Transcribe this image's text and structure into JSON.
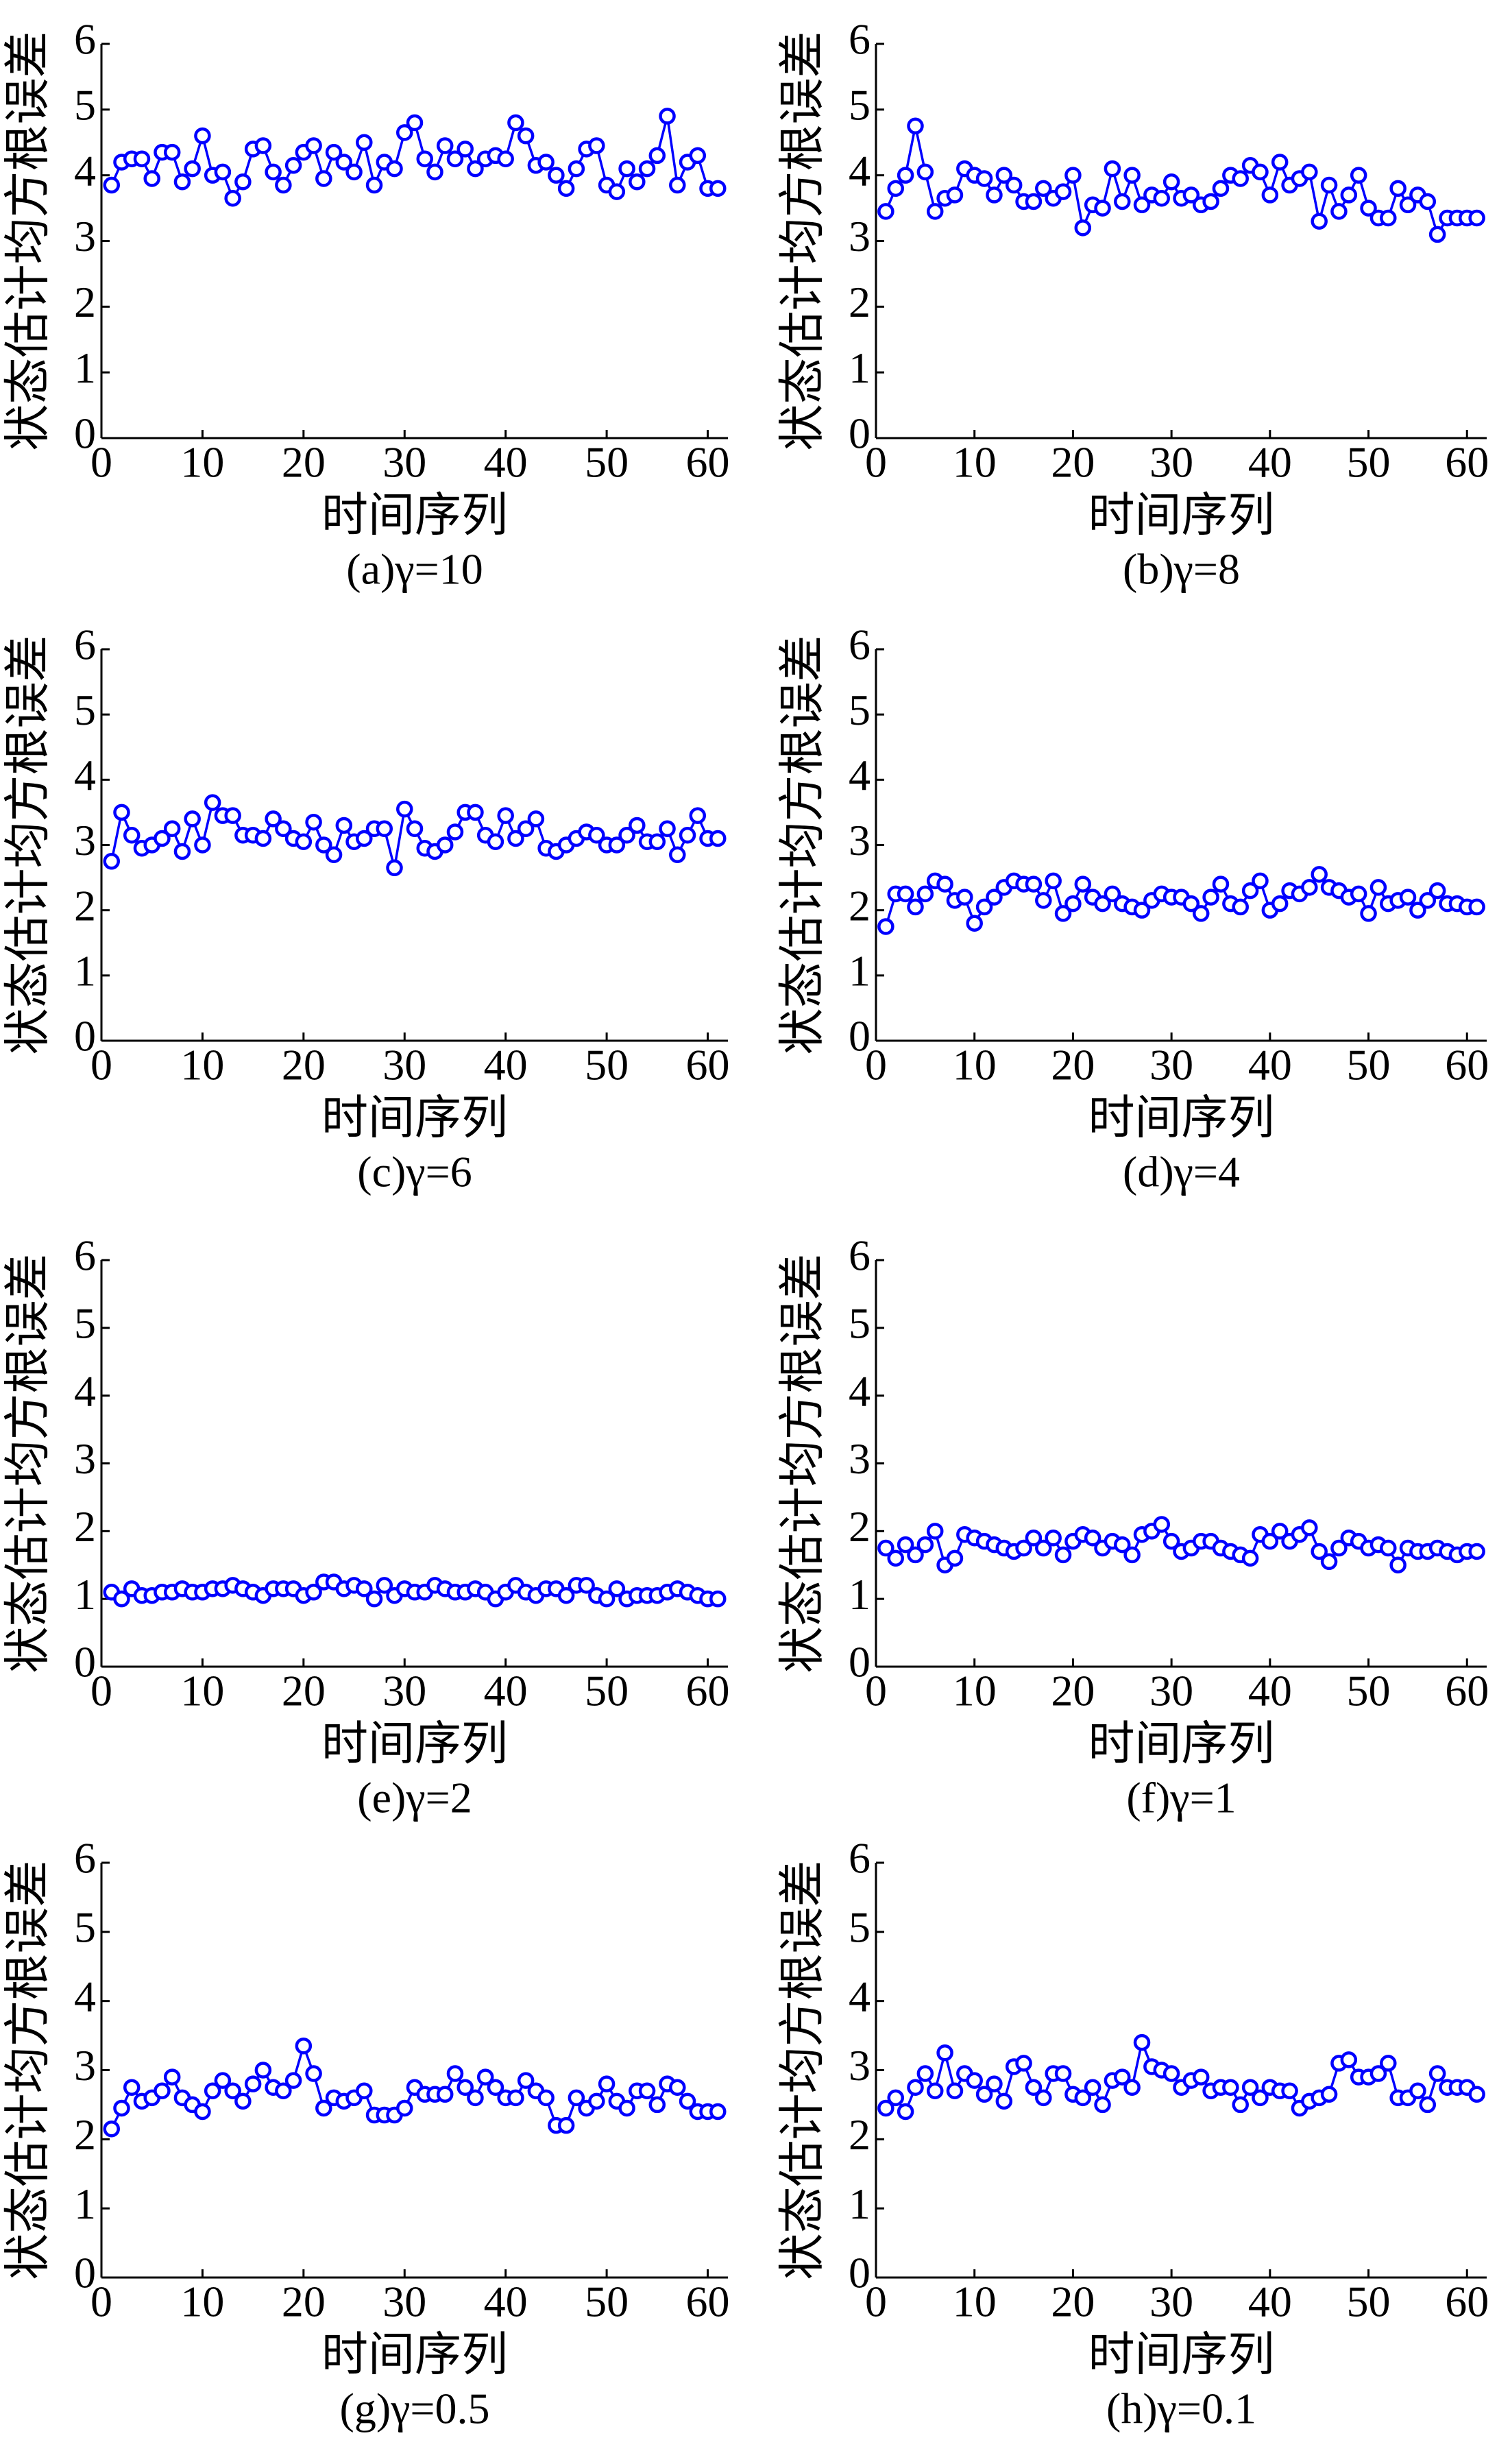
{
  "chart_data": [
    {
      "type": "line",
      "title": "(a)γ=10",
      "xlabel": "时间序列",
      "ylabel": "状态估计均方根误差",
      "color": "#0000ff",
      "x": [
        1,
        2,
        3,
        4,
        5,
        6,
        7,
        8,
        9,
        10,
        11,
        12,
        13,
        14,
        15,
        16,
        17,
        18,
        19,
        20,
        21,
        22,
        23,
        24,
        25,
        26,
        27,
        28,
        29,
        30,
        31,
        32,
        33,
        34,
        35,
        36,
        37,
        38,
        39,
        40,
        41,
        42,
        43,
        44,
        45,
        46,
        47,
        48,
        49,
        50,
        51,
        52,
        53,
        54,
        55,
        56,
        57,
        58,
        59,
        60,
        61
      ],
      "values": [
        3.85,
        4.2,
        4.25,
        4.25,
        3.95,
        4.35,
        4.35,
        3.9,
        4.1,
        4.6,
        4.0,
        4.05,
        3.65,
        3.9,
        4.4,
        4.45,
        4.05,
        3.85,
        4.15,
        4.35,
        4.45,
        3.95,
        4.35,
        4.2,
        4.05,
        4.5,
        3.85,
        4.2,
        4.1,
        4.65,
        4.8,
        4.25,
        4.05,
        4.45,
        4.25,
        4.4,
        4.1,
        4.25,
        4.3,
        4.25,
        4.8,
        4.6,
        4.15,
        4.2,
        4.0,
        3.8,
        4.1,
        4.4,
        4.45,
        3.85,
        3.75,
        4.1,
        3.9,
        4.1,
        4.3,
        4.9,
        3.85,
        4.2,
        4.3,
        3.8,
        3.8
      ],
      "xlim": [
        0,
        62
      ],
      "xticks": [
        0,
        10,
        20,
        30,
        40,
        50,
        60
      ],
      "ylim": [
        0,
        6
      ],
      "yticks": [
        0,
        1,
        2,
        3,
        4,
        5,
        6
      ]
    },
    {
      "type": "line",
      "title": "(b)γ=8",
      "xlabel": "时间序列",
      "ylabel": "状态估计均方根误差",
      "color": "#0000ff",
      "x": [
        1,
        2,
        3,
        4,
        5,
        6,
        7,
        8,
        9,
        10,
        11,
        12,
        13,
        14,
        15,
        16,
        17,
        18,
        19,
        20,
        21,
        22,
        23,
        24,
        25,
        26,
        27,
        28,
        29,
        30,
        31,
        32,
        33,
        34,
        35,
        36,
        37,
        38,
        39,
        40,
        41,
        42,
        43,
        44,
        45,
        46,
        47,
        48,
        49,
        50,
        51,
        52,
        53,
        54,
        55,
        56,
        57,
        58,
        59,
        60,
        61
      ],
      "values": [
        3.45,
        3.8,
        4.0,
        4.75,
        4.05,
        3.45,
        3.65,
        3.7,
        4.1,
        4.0,
        3.95,
        3.7,
        4.0,
        3.85,
        3.6,
        3.6,
        3.8,
        3.65,
        3.75,
        4.0,
        3.2,
        3.55,
        3.5,
        4.1,
        3.6,
        4.0,
        3.55,
        3.7,
        3.65,
        3.9,
        3.65,
        3.7,
        3.55,
        3.6,
        3.8,
        4.0,
        3.95,
        4.15,
        4.05,
        3.7,
        4.2,
        3.85,
        3.95,
        4.05,
        3.3,
        3.85,
        3.45,
        3.7,
        4.0,
        3.5,
        3.35,
        3.35,
        3.8,
        3.55,
        3.7,
        3.6,
        3.1,
        3.35,
        3.35,
        3.35,
        3.35
      ],
      "xlim": [
        0,
        62
      ],
      "xticks": [
        0,
        10,
        20,
        30,
        40,
        50,
        60
      ],
      "ylim": [
        0,
        6
      ],
      "yticks": [
        0,
        1,
        2,
        3,
        4,
        5,
        6
      ]
    },
    {
      "type": "line",
      "title": "(c)γ=6",
      "xlabel": "时间序列",
      "ylabel": "状态估计均方根误差",
      "color": "#0000ff",
      "x": [
        1,
        2,
        3,
        4,
        5,
        6,
        7,
        8,
        9,
        10,
        11,
        12,
        13,
        14,
        15,
        16,
        17,
        18,
        19,
        20,
        21,
        22,
        23,
        24,
        25,
        26,
        27,
        28,
        29,
        30,
        31,
        32,
        33,
        34,
        35,
        36,
        37,
        38,
        39,
        40,
        41,
        42,
        43,
        44,
        45,
        46,
        47,
        48,
        49,
        50,
        51,
        52,
        53,
        54,
        55,
        56,
        57,
        58,
        59,
        60,
        61
      ],
      "values": [
        2.75,
        3.5,
        3.15,
        2.95,
        3.0,
        3.1,
        3.25,
        2.9,
        3.4,
        3.0,
        3.65,
        3.45,
        3.45,
        3.15,
        3.15,
        3.1,
        3.4,
        3.25,
        3.1,
        3.05,
        3.35,
        3.0,
        2.85,
        3.3,
        3.05,
        3.1,
        3.25,
        3.25,
        2.65,
        3.55,
        3.25,
        2.95,
        2.9,
        3.0,
        3.2,
        3.5,
        3.5,
        3.15,
        3.05,
        3.45,
        3.1,
        3.25,
        3.4,
        2.95,
        2.9,
        3.0,
        3.1,
        3.2,
        3.15,
        3.0,
        3.0,
        3.15,
        3.3,
        3.05,
        3.05,
        3.25,
        2.85,
        3.15,
        3.45,
        3.1,
        3.1
      ],
      "xlim": [
        0,
        62
      ],
      "xticks": [
        0,
        10,
        20,
        30,
        40,
        50,
        60
      ],
      "ylim": [
        0,
        6
      ],
      "yticks": [
        0,
        1,
        2,
        3,
        4,
        5,
        6
      ]
    },
    {
      "type": "line",
      "title": "(d)γ=4",
      "xlabel": "时间序列",
      "ylabel": "状态估计均方根误差",
      "color": "#0000ff",
      "x": [
        1,
        2,
        3,
        4,
        5,
        6,
        7,
        8,
        9,
        10,
        11,
        12,
        13,
        14,
        15,
        16,
        17,
        18,
        19,
        20,
        21,
        22,
        23,
        24,
        25,
        26,
        27,
        28,
        29,
        30,
        31,
        32,
        33,
        34,
        35,
        36,
        37,
        38,
        39,
        40,
        41,
        42,
        43,
        44,
        45,
        46,
        47,
        48,
        49,
        50,
        51,
        52,
        53,
        54,
        55,
        56,
        57,
        58,
        59,
        60,
        61
      ],
      "values": [
        1.75,
        2.25,
        2.25,
        2.05,
        2.25,
        2.45,
        2.4,
        2.15,
        2.2,
        1.8,
        2.05,
        2.2,
        2.35,
        2.45,
        2.4,
        2.4,
        2.15,
        2.45,
        1.95,
        2.1,
        2.4,
        2.2,
        2.1,
        2.25,
        2.1,
        2.05,
        2.0,
        2.15,
        2.25,
        2.2,
        2.2,
        2.1,
        1.95,
        2.2,
        2.4,
        2.1,
        2.05,
        2.3,
        2.45,
        2.0,
        2.1,
        2.3,
        2.25,
        2.35,
        2.55,
        2.35,
        2.3,
        2.2,
        2.25,
        1.95,
        2.35,
        2.1,
        2.15,
        2.2,
        2.0,
        2.15,
        2.3,
        2.1,
        2.1,
        2.05,
        2.05
      ],
      "xlim": [
        0,
        62
      ],
      "xticks": [
        0,
        10,
        20,
        30,
        40,
        50,
        60
      ],
      "ylim": [
        0,
        6
      ],
      "yticks": [
        0,
        1,
        2,
        3,
        4,
        5,
        6
      ]
    },
    {
      "type": "line",
      "title": "(e)γ=2",
      "xlabel": "时间序列",
      "ylabel": "状态估计均方根误差",
      "color": "#0000ff",
      "x": [
        1,
        2,
        3,
        4,
        5,
        6,
        7,
        8,
        9,
        10,
        11,
        12,
        13,
        14,
        15,
        16,
        17,
        18,
        19,
        20,
        21,
        22,
        23,
        24,
        25,
        26,
        27,
        28,
        29,
        30,
        31,
        32,
        33,
        34,
        35,
        36,
        37,
        38,
        39,
        40,
        41,
        42,
        43,
        44,
        45,
        46,
        47,
        48,
        49,
        50,
        51,
        52,
        53,
        54,
        55,
        56,
        57,
        58,
        59,
        60,
        61
      ],
      "values": [
        1.1,
        1.0,
        1.15,
        1.05,
        1.05,
        1.1,
        1.1,
        1.15,
        1.1,
        1.1,
        1.15,
        1.15,
        1.2,
        1.15,
        1.1,
        1.05,
        1.15,
        1.15,
        1.15,
        1.05,
        1.1,
        1.25,
        1.25,
        1.15,
        1.2,
        1.15,
        1.0,
        1.2,
        1.05,
        1.15,
        1.1,
        1.1,
        1.2,
        1.15,
        1.1,
        1.1,
        1.15,
        1.1,
        1.0,
        1.1,
        1.2,
        1.1,
        1.05,
        1.15,
        1.15,
        1.05,
        1.2,
        1.2,
        1.05,
        1.0,
        1.15,
        1.0,
        1.05,
        1.05,
        1.05,
        1.1,
        1.15,
        1.1,
        1.05,
        1.0,
        1.0
      ],
      "xlim": [
        0,
        62
      ],
      "xticks": [
        0,
        10,
        20,
        30,
        40,
        50,
        60
      ],
      "ylim": [
        0,
        6
      ],
      "yticks": [
        0,
        1,
        2,
        3,
        4,
        5,
        6
      ]
    },
    {
      "type": "line",
      "title": "(f)γ=1",
      "xlabel": "时间序列",
      "ylabel": "状态估计均方根误差",
      "color": "#0000ff",
      "x": [
        1,
        2,
        3,
        4,
        5,
        6,
        7,
        8,
        9,
        10,
        11,
        12,
        13,
        14,
        15,
        16,
        17,
        18,
        19,
        20,
        21,
        22,
        23,
        24,
        25,
        26,
        27,
        28,
        29,
        30,
        31,
        32,
        33,
        34,
        35,
        36,
        37,
        38,
        39,
        40,
        41,
        42,
        43,
        44,
        45,
        46,
        47,
        48,
        49,
        50,
        51,
        52,
        53,
        54,
        55,
        56,
        57,
        58,
        59,
        60,
        61
      ],
      "values": [
        1.75,
        1.6,
        1.8,
        1.65,
        1.8,
        2.0,
        1.5,
        1.6,
        1.95,
        1.9,
        1.85,
        1.8,
        1.75,
        1.7,
        1.75,
        1.9,
        1.75,
        1.9,
        1.65,
        1.85,
        1.95,
        1.9,
        1.75,
        1.85,
        1.8,
        1.65,
        1.95,
        2.0,
        2.1,
        1.85,
        1.7,
        1.75,
        1.85,
        1.85,
        1.75,
        1.7,
        1.65,
        1.6,
        1.95,
        1.85,
        2.0,
        1.85,
        1.95,
        2.05,
        1.7,
        1.55,
        1.75,
        1.9,
        1.85,
        1.75,
        1.8,
        1.75,
        1.5,
        1.75,
        1.7,
        1.7,
        1.75,
        1.7,
        1.65,
        1.7,
        1.7
      ],
      "xlim": [
        0,
        62
      ],
      "xticks": [
        0,
        10,
        20,
        30,
        40,
        50,
        60
      ],
      "ylim": [
        0,
        6
      ],
      "yticks": [
        0,
        1,
        2,
        3,
        4,
        5,
        6
      ]
    },
    {
      "type": "line",
      "title": "(g)γ=0.5",
      "xlabel": "时间序列",
      "ylabel": "状态估计均方根误差",
      "color": "#0000ff",
      "x": [
        1,
        2,
        3,
        4,
        5,
        6,
        7,
        8,
        9,
        10,
        11,
        12,
        13,
        14,
        15,
        16,
        17,
        18,
        19,
        20,
        21,
        22,
        23,
        24,
        25,
        26,
        27,
        28,
        29,
        30,
        31,
        32,
        33,
        34,
        35,
        36,
        37,
        38,
        39,
        40,
        41,
        42,
        43,
        44,
        45,
        46,
        47,
        48,
        49,
        50,
        51,
        52,
        53,
        54,
        55,
        56,
        57,
        58,
        59,
        60,
        61
      ],
      "values": [
        2.15,
        2.45,
        2.75,
        2.55,
        2.6,
        2.7,
        2.9,
        2.6,
        2.5,
        2.4,
        2.7,
        2.85,
        2.7,
        2.55,
        2.8,
        3.0,
        2.75,
        2.7,
        2.85,
        3.35,
        2.95,
        2.45,
        2.6,
        2.55,
        2.6,
        2.7,
        2.35,
        2.35,
        2.35,
        2.45,
        2.75,
        2.65,
        2.65,
        2.65,
        2.95,
        2.75,
        2.6,
        2.9,
        2.75,
        2.6,
        2.6,
        2.85,
        2.7,
        2.6,
        2.2,
        2.2,
        2.6,
        2.45,
        2.55,
        2.8,
        2.55,
        2.45,
        2.7,
        2.7,
        2.5,
        2.8,
        2.75,
        2.55,
        2.4,
        2.4,
        2.4
      ],
      "xlim": [
        0,
        62
      ],
      "xticks": [
        0,
        10,
        20,
        30,
        40,
        50,
        60
      ],
      "ylim": [
        0,
        6
      ],
      "yticks": [
        0,
        1,
        2,
        3,
        4,
        5,
        6
      ]
    },
    {
      "type": "line",
      "title": "(h)γ=0.1",
      "xlabel": "时间序列",
      "ylabel": "状态估计均方根误差",
      "color": "#0000ff",
      "x": [
        1,
        2,
        3,
        4,
        5,
        6,
        7,
        8,
        9,
        10,
        11,
        12,
        13,
        14,
        15,
        16,
        17,
        18,
        19,
        20,
        21,
        22,
        23,
        24,
        25,
        26,
        27,
        28,
        29,
        30,
        31,
        32,
        33,
        34,
        35,
        36,
        37,
        38,
        39,
        40,
        41,
        42,
        43,
        44,
        45,
        46,
        47,
        48,
        49,
        50,
        51,
        52,
        53,
        54,
        55,
        56,
        57,
        58,
        59,
        60,
        61
      ],
      "values": [
        2.45,
        2.6,
        2.4,
        2.75,
        2.95,
        2.7,
        3.25,
        2.7,
        2.95,
        2.85,
        2.65,
        2.8,
        2.55,
        3.05,
        3.1,
        2.75,
        2.6,
        2.95,
        2.95,
        2.65,
        2.6,
        2.75,
        2.5,
        2.85,
        2.9,
        2.75,
        3.4,
        3.05,
        3.0,
        2.95,
        2.75,
        2.85,
        2.9,
        2.7,
        2.75,
        2.75,
        2.5,
        2.75,
        2.6,
        2.75,
        2.7,
        2.7,
        2.45,
        2.55,
        2.6,
        2.65,
        3.1,
        3.15,
        2.9,
        2.9,
        2.95,
        3.1,
        2.6,
        2.6,
        2.7,
        2.5,
        2.95,
        2.75,
        2.75,
        2.75,
        2.65
      ],
      "xlim": [
        0,
        62
      ],
      "xticks": [
        0,
        10,
        20,
        30,
        40,
        50,
        60
      ],
      "ylim": [
        0,
        6
      ],
      "yticks": [
        0,
        1,
        2,
        3,
        4,
        5,
        6
      ]
    }
  ]
}
